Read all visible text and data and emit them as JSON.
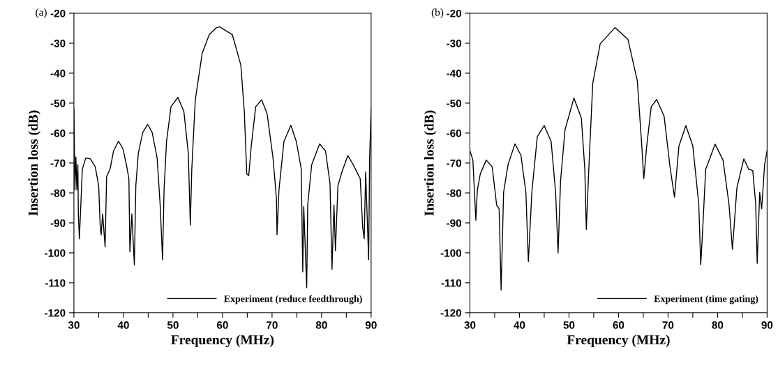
{
  "chart_data": [
    {
      "type": "line",
      "title": "(a)",
      "xlabel": "Frequency (MHz)",
      "ylabel": "Insertion loss (dB)",
      "xlim": [
        30,
        90
      ],
      "ylim": [
        -120,
        -20
      ],
      "xticks": [
        30,
        {
          "value": 35,
          "label": null
        },
        40,
        {
          "value": 45,
          "label": null
        },
        50,
        {
          "value": 55,
          "label": null
        },
        60,
        {
          "value": 65,
          "label": null
        },
        70,
        {
          "value": 75,
          "label": null
        },
        80,
        {
          "value": 85,
          "label": null
        },
        90
      ],
      "yticks": [
        -120,
        -110,
        -100,
        -90,
        -80,
        -70,
        -60,
        -50,
        -40,
        -30,
        -20
      ],
      "grid": false,
      "legend": "bottom right",
      "series": [
        {
          "name": "Experiment (reduce feedthrough)",
          "color": "#000000",
          "x": [
            30.0,
            30.2,
            30.4,
            30.6,
            30.8,
            30.9,
            31.1,
            31.4,
            31.7,
            32.4,
            33.3,
            34.3,
            35.0,
            35.3,
            35.5,
            35.8,
            36.3,
            36.6,
            37.3,
            38.0,
            39.0,
            39.9,
            40.6,
            41.1,
            41.3,
            41.7,
            42.2,
            42.5,
            43.0,
            43.9,
            44.9,
            45.8,
            46.8,
            47.4,
            47.9,
            48.2,
            48.7,
            49.6,
            51.0,
            52.2,
            53.1,
            53.5,
            53.8,
            54.5,
            55.9,
            57.3,
            58.7,
            59.4,
            62.0,
            63.7,
            64.4,
            64.9,
            65.3,
            65.8,
            66.7,
            67.9,
            69.0,
            70.2,
            70.9,
            71.0,
            71.4,
            72.4,
            73.8,
            74.9,
            75.9,
            76.2,
            76.4,
            77.0,
            77.2,
            78.0,
            79.6,
            80.8,
            81.7,
            82.1,
            82.5,
            82.8,
            83.3,
            84.1,
            85.3,
            86.4,
            87.8,
            88.3,
            88.6,
            88.9,
            89.5,
            89.7,
            90.0
          ],
          "values": [
            -52,
            -79,
            -68,
            -79,
            -70.6,
            -87,
            -95.3,
            -84,
            -72,
            -68.3,
            -68.6,
            -71.2,
            -77.6,
            -90.7,
            -94,
            -87,
            -98,
            -74.5,
            -72,
            -66,
            -62.7,
            -65.3,
            -70.6,
            -75.2,
            -99.7,
            -87,
            -104,
            -77.6,
            -66.8,
            -59.8,
            -57.1,
            -59.8,
            -68.3,
            -83.7,
            -102.3,
            -79,
            -62.8,
            -51.2,
            -48.1,
            -52.8,
            -66.8,
            -90.7,
            -72,
            -49,
            -33.4,
            -27.2,
            -24.9,
            -24.5,
            -27.2,
            -37.3,
            -52.8,
            -73.7,
            -74.2,
            -64.4,
            -51.2,
            -48.9,
            -53.5,
            -68.3,
            -82.2,
            -93.9,
            -79,
            -62.8,
            -57.4,
            -62.8,
            -72,
            -106.3,
            -84.5,
            -111.6,
            -84,
            -70.6,
            -63.6,
            -66,
            -76.8,
            -105.5,
            -84,
            -99.3,
            -77.6,
            -73,
            -67.5,
            -70.6,
            -75.2,
            -91.5,
            -95.3,
            -73,
            -102.3,
            -68.3,
            -52.1
          ]
        }
      ]
    },
    {
      "type": "line",
      "title": "(b)",
      "xlabel": "Frequency (MHz)",
      "ylabel": "Insertion loss (dB)",
      "xlim": [
        30,
        90
      ],
      "ylim": [
        -120,
        -20
      ],
      "xticks": [
        30,
        {
          "value": 35,
          "label": null
        },
        40,
        {
          "value": 45,
          "label": null
        },
        50,
        {
          "value": 55,
          "label": null
        },
        60,
        {
          "value": 65,
          "label": null
        },
        70,
        {
          "value": 75,
          "label": null
        },
        80,
        {
          "value": 85,
          "label": null
        },
        90
      ],
      "yticks": [
        -120,
        -110,
        -100,
        -90,
        -80,
        -70,
        -60,
        -50,
        -40,
        -30,
        -20
      ],
      "grid": false,
      "legend": "bottom right",
      "series": [
        {
          "name": "Experiment (time gating)",
          "color": "#000000",
          "x": [
            30.0,
            30.6,
            31.2,
            31.5,
            32.1,
            33.3,
            34.5,
            35.1,
            35.4,
            35.9,
            36.3,
            36.8,
            37.7,
            39.1,
            40.3,
            41.3,
            41.8,
            42.5,
            43.6,
            45.0,
            46.4,
            47.3,
            47.8,
            48.3,
            49.2,
            51.0,
            52.5,
            53.2,
            53.5,
            54.0,
            54.8,
            56.3,
            59.3,
            61.9,
            63.8,
            64.7,
            65.1,
            65.7,
            66.6,
            67.7,
            69.2,
            70.4,
            71.3,
            72.2,
            73.6,
            75.0,
            76.2,
            76.6,
            76.9,
            77.6,
            79.5,
            81.1,
            82.3,
            83.0,
            83.9,
            85.3,
            86.3,
            87.1,
            87.7,
            88.0,
            88.5,
            88.9,
            89.5,
            90.0
          ],
          "values": [
            -65.9,
            -69,
            -89.1,
            -79,
            -73.6,
            -69,
            -71.3,
            -79.8,
            -84.1,
            -85.3,
            -112.4,
            -79.8,
            -70.5,
            -63.6,
            -67.4,
            -79.8,
            -102.9,
            -79.8,
            -61.2,
            -57.5,
            -62.8,
            -79.8,
            -100,
            -76,
            -58.9,
            -48.3,
            -55,
            -72.1,
            -92.2,
            -72.1,
            -43.4,
            -30.2,
            -24.8,
            -28.7,
            -42.6,
            -64.3,
            -75.2,
            -64.3,
            -51.2,
            -48.8,
            -54.3,
            -71.3,
            -81.4,
            -64.3,
            -57.5,
            -64.3,
            -83.7,
            -103.9,
            -95.3,
            -72.1,
            -63.7,
            -69,
            -83.7,
            -98.8,
            -78.3,
            -68.6,
            -72.1,
            -72.5,
            -83.7,
            -103.5,
            -79.8,
            -85.3,
            -70.5,
            -65.9
          ]
        }
      ]
    }
  ]
}
